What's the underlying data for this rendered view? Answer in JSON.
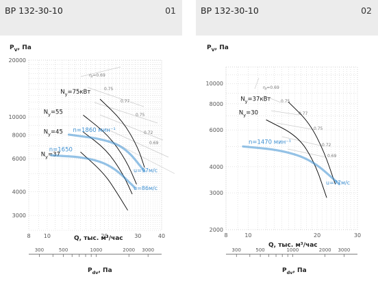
{
  "colors": {
    "header_bg": "#ececec",
    "grid": "#c8c8c8",
    "curve": "#000000",
    "accent": "#3d8fd1",
    "eff_line": "#cccccc",
    "eff_text": "#777777"
  },
  "panels": [
    {
      "title": "ВР 132-30-10",
      "number": "01"
    },
    {
      "title": "ВР 132-30-10",
      "number": "02"
    }
  ],
  "chart_data": [
    {
      "type": "line",
      "title": "ВР 132-30-10",
      "ylabel": "Pv, Па",
      "xlabel": "Q, тыс. м³/час",
      "x2label": "Pdv, Па",
      "log_scale": true,
      "xlim": [
        8,
        40
      ],
      "ylim": [
        2500,
        20000
      ],
      "x_ticks": [
        8,
        10,
        20,
        30,
        40
      ],
      "y_ticks": [
        3000,
        4000,
        6000,
        8000,
        10000,
        20000
      ],
      "x2_ticks": [
        300,
        500,
        1000,
        2000,
        3000
      ],
      "series": [
        {
          "name": "Nу=75кВт",
          "kind": "power",
          "points": [
            [
              19,
              12400
            ],
            [
              25,
              9500
            ],
            [
              30,
              6900
            ],
            [
              32.5,
              5400
            ]
          ]
        },
        {
          "name": "Nу=55",
          "kind": "power",
          "points": [
            [
              15.5,
              10200
            ],
            [
              21,
              8000
            ],
            [
              26,
              5900
            ],
            [
              29.5,
              4400
            ]
          ]
        },
        {
          "name": "Nу=45",
          "kind": "power",
          "points": [
            [
              15.5,
              8300
            ],
            [
              20.5,
              6700
            ],
            [
              25,
              5000
            ],
            [
              28,
              3900
            ]
          ]
        },
        {
          "name": "Nу=37",
          "kind": "power",
          "points": [
            [
              15,
              6500
            ],
            [
              20,
              5000
            ],
            [
              23.5,
              3900
            ],
            [
              26.5,
              3200
            ]
          ]
        },
        {
          "name": "n=1860 мин⁻¹",
          "kind": "speed",
          "points": [
            [
              13,
              8050
            ],
            [
              20,
              7600
            ],
            [
              26,
              6800
            ],
            [
              32.5,
              5150
            ]
          ]
        },
        {
          "name": "n=1650",
          "kind": "speed",
          "points": [
            [
              10.5,
              6250
            ],
            [
              16,
              6100
            ],
            [
              22,
              5500
            ],
            [
              29,
              4200
            ]
          ]
        }
      ],
      "annotations": {
        "eta_prefix": "η",
        "eta_sub": "f",
        "efficiency_labels": [
          "0.69",
          "0.75",
          "0.77",
          "0.75",
          "0.72",
          "0.69"
        ],
        "velocity_labels": [
          "u=97м/с",
          "u=86м/с"
        ]
      }
    },
    {
      "type": "line",
      "title": "ВР 132-30-10",
      "ylabel": "Pv, Па",
      "xlabel": "Q, тыс. м³/час",
      "x2label": "Pdv, Па",
      "log_scale": true,
      "xlim": [
        8,
        30
      ],
      "ylim": [
        2000,
        12000
      ],
      "x_ticks": [
        8,
        10,
        20,
        30
      ],
      "y_ticks": [
        2000,
        3000,
        4000,
        6000,
        8000,
        10000
      ],
      "x2_ticks": [
        300,
        500,
        1000,
        2000,
        3000
      ],
      "series": [
        {
          "name": "Nу=37кВт",
          "kind": "power",
          "points": [
            [
              15,
              8150
            ],
            [
              18.5,
              6500
            ],
            [
              21.5,
              4700
            ],
            [
              24,
              3300
            ]
          ]
        },
        {
          "name": "Nу=30",
          "kind": "power",
          "points": [
            [
              12,
              6700
            ],
            [
              16.5,
              5600
            ],
            [
              19.5,
              4200
            ],
            [
              22,
              2850
            ]
          ]
        },
        {
          "name": "n=1470 мин⁻¹",
          "kind": "speed",
          "points": [
            [
              9.5,
              5000
            ],
            [
              14,
              4800
            ],
            [
              19,
              4300
            ],
            [
              25,
              3300
            ]
          ]
        }
      ],
      "annotations": {
        "eta_prefix": "η",
        "eta_sub": "f",
        "efficiency_labels": [
          "0.69",
          "0.75",
          "0.77",
          "0.75",
          "0.72",
          "0.69"
        ],
        "velocity_labels": [
          "u=77м/с"
        ]
      }
    }
  ]
}
